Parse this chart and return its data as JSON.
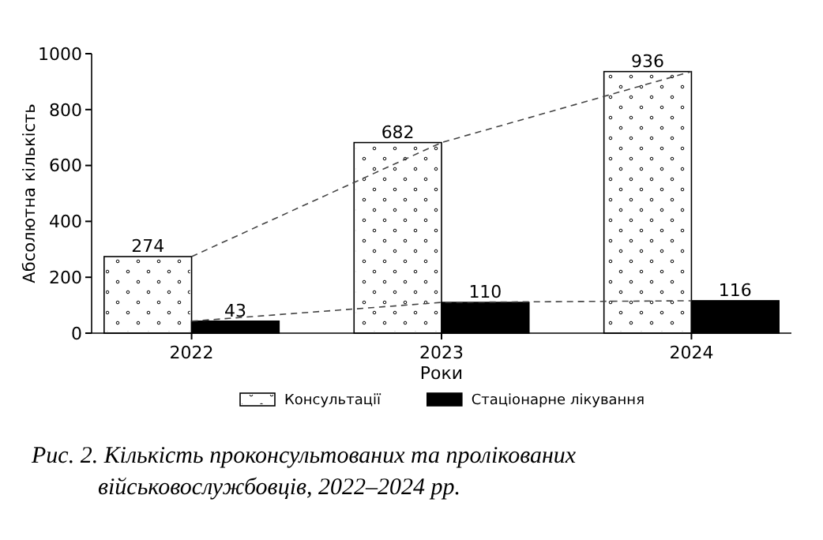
{
  "chart_data": {
    "type": "bar",
    "xlabel": "Роки",
    "ylabel": "Абсолютна кількість",
    "categories": [
      "2022",
      "2023",
      "2024"
    ],
    "series": [
      {
        "name": "Консультації",
        "color": "#ffffff",
        "values": [
          274,
          682,
          936
        ],
        "value_labels": [
          "274",
          "682",
          "936"
        ]
      },
      {
        "name": "Стаціонарне лікування",
        "color": "#000000",
        "values": [
          43,
          110,
          116
        ],
        "value_labels": [
          "43",
          "110",
          "116"
        ]
      },
      {
        "type": "line",
        "color": "#444444",
        "line_style": "dashed",
        "marker": "none",
        "values": [
          274,
          682,
          936
        ]
      },
      {
        "type": "line",
        "color": "#444444",
        "line_style": "dashed",
        "marker": "none",
        "values": [
          43,
          110,
          116
        ]
      }
    ],
    "ylim": [
      0,
      1000
    ],
    "yticks": [
      0,
      200,
      400,
      600,
      800,
      1000
    ],
    "grid": false,
    "legend": "bottom",
    "annotations": [
      "Рис. 2. Кількість проконсультованих та пролікованих військовослужбовців, 2022–2024 рр."
    ]
  }
}
